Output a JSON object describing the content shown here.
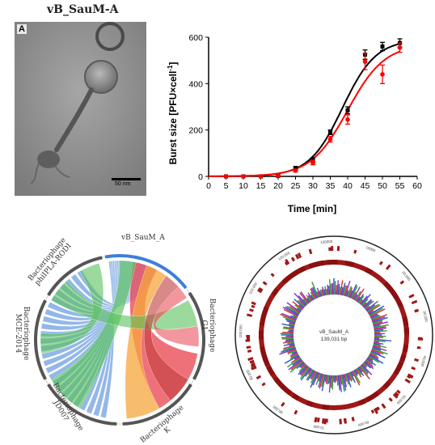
{
  "figure": {
    "title": "vB_SauM-A",
    "panel_letter": "A",
    "scale_bar_label": "50 nm"
  },
  "chart_data": {
    "type": "scatter",
    "xlabel": "Time [min]",
    "ylabel": "Burst size [PFU×cell",
    "ylabel_superscript": "-1",
    "ylabel_close": "]",
    "xlim": [
      0,
      60
    ],
    "ylim": [
      0,
      600
    ],
    "x_ticks": [
      0,
      5,
      10,
      15,
      20,
      25,
      30,
      35,
      40,
      45,
      50,
      55,
      60
    ],
    "y_ticks": [
      0,
      200,
      400,
      600
    ],
    "grid": false,
    "series": [
      {
        "color": "#000000",
        "marker": "square",
        "x": [
          5,
          10,
          15,
          20,
          25,
          30,
          35,
          40,
          45,
          50,
          55
        ],
        "y": [
          0,
          0,
          0,
          2,
          35,
          70,
          190,
          285,
          525,
          560,
          575
        ],
        "err": [
          1,
          1,
          1,
          3,
          8,
          10,
          10,
          15,
          20,
          18,
          18
        ],
        "fit": {
          "top": 590,
          "half": 38.5,
          "slope": 4.8
        }
      },
      {
        "color": "#ff0000",
        "marker": "circle",
        "x": [
          5,
          10,
          15,
          20,
          25,
          30,
          35,
          40,
          45,
          50,
          55
        ],
        "y": [
          0,
          0,
          0,
          3,
          25,
          60,
          160,
          245,
          495,
          440,
          555
        ],
        "err": [
          1,
          1,
          1,
          3,
          6,
          10,
          12,
          20,
          35,
          40,
          20
        ],
        "fit": {
          "top": 570,
          "half": 40.0,
          "slope": 5.3
        }
      }
    ]
  },
  "chord_diagram": {
    "labels": [
      "vB_SauM_A",
      "Bacteriophage G1",
      "Bacteriophage K",
      "Bacteriophage JD007",
      "Bacteriophage MCE-2014",
      "Bacteriophage phiIPLA-RODI"
    ],
    "colors": [
      "#3d7fd9",
      "#e8424d",
      "#f6a63c",
      "#58c05a",
      "#7fb2e8",
      "#c7282f"
    ]
  },
  "genome_map": {
    "name": "vB_SauM_A",
    "length_label": "139,031 bp",
    "ring_color": "#a01818",
    "gc_colors": [
      "#2a55c8",
      "#2ea52e",
      "#d23232",
      "#8a32c8"
    ],
    "ticks": [
      "130000",
      "10000",
      "20,000",
      "30,000",
      "40,000",
      "50,000",
      "60,000",
      "70,000",
      "80,000",
      "90,000",
      "100,000",
      "110,000",
      "120,000"
    ]
  }
}
